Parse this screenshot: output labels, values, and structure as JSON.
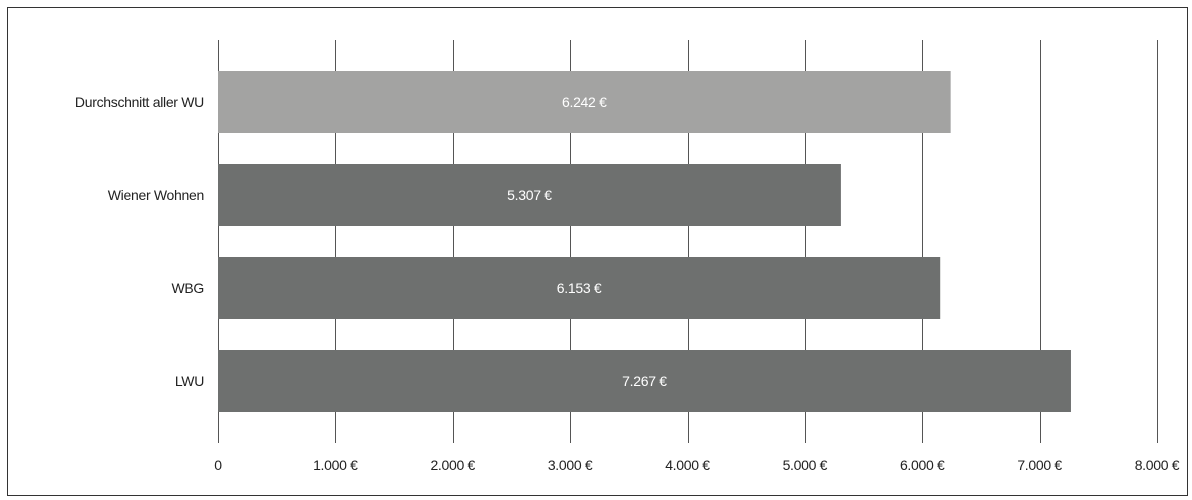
{
  "chart_data": {
    "type": "bar",
    "orientation": "horizontal",
    "categories": [
      "Durchschnitt aller WU",
      "Wiener Wohnen",
      "WBG",
      "LWU"
    ],
    "values": [
      6242,
      5307,
      6153,
      7267
    ],
    "value_labels": [
      "6.242 €",
      "5.307 €",
      "6.153 €",
      "7.267 €"
    ],
    "bar_colors": [
      "#a3a3a2",
      "#6e706f",
      "#6e706f",
      "#6e706f"
    ],
    "xlim": [
      0,
      8000
    ],
    "x_ticks": [
      0,
      1000,
      2000,
      3000,
      4000,
      5000,
      6000,
      7000,
      8000
    ],
    "x_tick_labels": [
      "0",
      "1.000 €",
      "2.000 €",
      "3.000 €",
      "4.000 €",
      "5.000 €",
      "6.000 €",
      "7.000 €",
      "8.000 €"
    ],
    "grid": "vertical",
    "title": "",
    "xlabel": "",
    "ylabel": ""
  }
}
